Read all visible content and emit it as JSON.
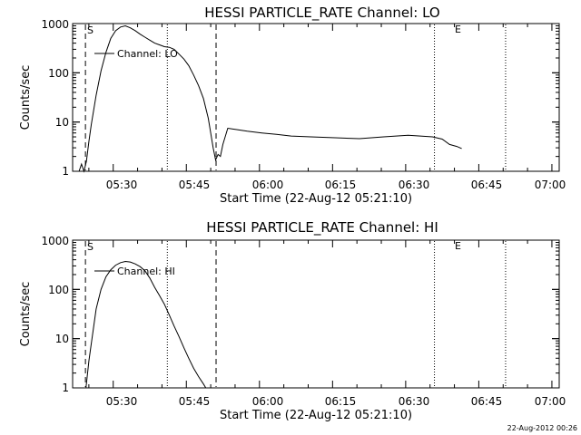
{
  "footer": {
    "timestamp": "22-Aug-2012 00:26"
  },
  "chart_data": [
    {
      "type": "line",
      "title": "HESSI PARTICLE_RATE Channel: LO",
      "xlabel": "Start Time (22-Aug-12 05:21:10)",
      "ylabel": "Counts/sec",
      "yscale": "log",
      "ylim": [
        1,
        1000
      ],
      "xlim_min": [
        21.17,
        121.0
      ],
      "x_ticks": [
        "05:30",
        "05:45",
        "06:00",
        "06:15",
        "06:30",
        "06:45",
        "07:00"
      ],
      "y_ticks": [
        "1",
        "10",
        "100",
        "1000"
      ],
      "legend": {
        "position": "top-left",
        "entries": [
          "Channel: LO"
        ]
      },
      "markers": [
        {
          "label": "S",
          "x_min": 23.8,
          "style": "dashed"
        },
        {
          "label": "",
          "x_min": 40.6,
          "style": "dotted"
        },
        {
          "label": "",
          "x_min": 50.6,
          "style": "dashed"
        },
        {
          "label": "E",
          "x_min": 95.4,
          "style": "dotted"
        },
        {
          "label": "",
          "x_min": 110.0,
          "style": "dotted"
        }
      ],
      "series": [
        {
          "name": "Channel: LO",
          "x_min": [
            22.5,
            23.0,
            23.5,
            24.0,
            24.5,
            25.0,
            26.0,
            27.0,
            28.0,
            29.0,
            30.0,
            31.0,
            32.0,
            33.0,
            34.0,
            35.0,
            36.0,
            37.0,
            38.0,
            39.0,
            40.0,
            41.0,
            42.0,
            43.0,
            44.0,
            45.0,
            46.0,
            47.0,
            48.0,
            49.0,
            49.5,
            50.0,
            50.5,
            51.0,
            51.5,
            52.0,
            53.0,
            55.0,
            57.0,
            60.0,
            63.0,
            66.0,
            70.0,
            75.0,
            80.0,
            85.0,
            90.0,
            95.0,
            97.0,
            98.5,
            100.0,
            101.0
          ],
          "counts_per_sec": [
            1.0,
            1.4,
            1.0,
            1.6,
            4.0,
            9.0,
            35.0,
            110.0,
            260.0,
            500.0,
            720.0,
            850.0,
            900.0,
            820.0,
            720.0,
            610.0,
            530.0,
            460.0,
            400.0,
            370.0,
            340.0,
            330.0,
            300.0,
            240.0,
            190.0,
            140.0,
            90.0,
            55.0,
            30.0,
            12.0,
            6.0,
            3.0,
            1.7,
            2.2,
            2.0,
            3.5,
            7.5,
            7.0,
            6.5,
            6.0,
            5.6,
            5.2,
            5.0,
            4.8,
            4.6,
            5.0,
            5.4,
            5.0,
            4.5,
            3.5,
            3.2,
            2.9
          ]
        }
      ]
    },
    {
      "type": "line",
      "title": "HESSI PARTICLE_RATE Channel: HI",
      "xlabel": "Start Time (22-Aug-12 05:21:10)",
      "ylabel": "Counts/sec",
      "yscale": "log",
      "ylim": [
        1,
        1000
      ],
      "xlim_min": [
        21.17,
        121.0
      ],
      "x_ticks": [
        "05:30",
        "05:45",
        "06:00",
        "06:15",
        "06:30",
        "06:45",
        "07:00"
      ],
      "y_ticks": [
        "1",
        "10",
        "100",
        "1000"
      ],
      "legend": {
        "position": "top-left",
        "entries": [
          "Channel: HI"
        ]
      },
      "markers": [
        {
          "label": "S",
          "x_min": 23.8,
          "style": "dashed"
        },
        {
          "label": "",
          "x_min": 40.6,
          "style": "dotted"
        },
        {
          "label": "",
          "x_min": 50.6,
          "style": "dashed"
        },
        {
          "label": "E",
          "x_min": 95.4,
          "style": "dotted"
        },
        {
          "label": "",
          "x_min": 110.0,
          "style": "dotted"
        }
      ],
      "series": [
        {
          "name": "Channel: HI",
          "x_min": [
            23.9,
            24.5,
            25.0,
            26.0,
            27.0,
            28.0,
            29.0,
            30.0,
            31.0,
            32.0,
            33.0,
            34.0,
            35.0,
            36.0,
            37.0,
            38.0,
            39.0,
            40.0,
            41.0,
            42.0,
            43.0,
            44.0,
            45.0,
            46.0,
            47.0,
            48.0,
            48.5
          ],
          "counts_per_sec": [
            1.0,
            3.5,
            8.0,
            40.0,
            100.0,
            180.0,
            250.0,
            310.0,
            350.0,
            370.0,
            360.0,
            330.0,
            290.0,
            240.0,
            170.0,
            110.0,
            75.0,
            50.0,
            30.0,
            18.0,
            11.0,
            6.5,
            4.0,
            2.5,
            1.7,
            1.2,
            1.0
          ]
        }
      ]
    }
  ]
}
